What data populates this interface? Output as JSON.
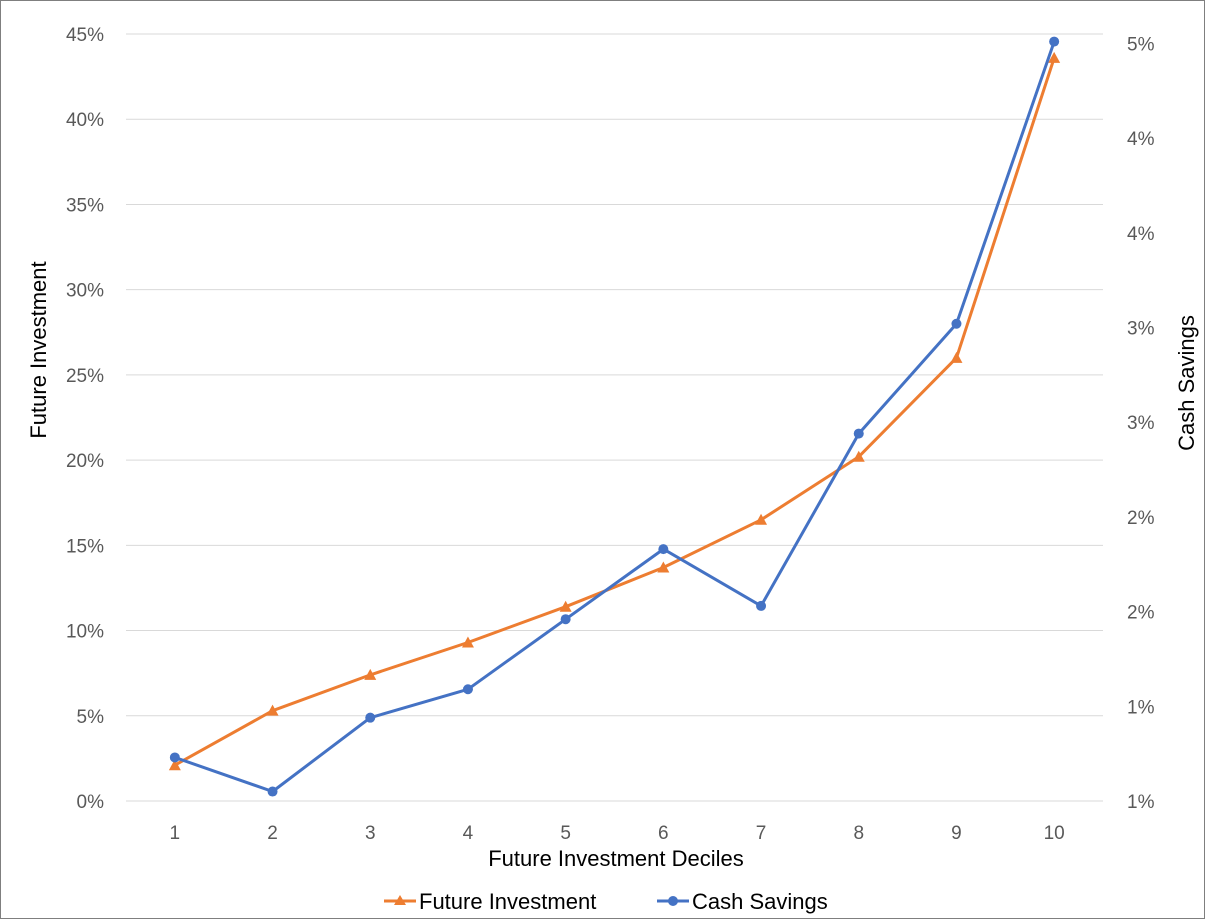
{
  "chart_data": {
    "type": "line",
    "title": "",
    "xlabel": "Future Investment Deciles",
    "ylabel": "Future Investment",
    "y2label": "Cash Savings",
    "categories": [
      "1",
      "2",
      "3",
      "4",
      "5",
      "6",
      "7",
      "8",
      "9",
      "10"
    ],
    "ylim": [
      0,
      0.45
    ],
    "yticks": [
      0,
      0.05,
      0.1,
      0.15,
      0.2,
      0.25,
      0.3,
      0.35,
      0.4,
      0.45
    ],
    "ytick_labels": [
      "0%",
      "5%",
      "10%",
      "15%",
      "20%",
      "25%",
      "30%",
      "35%",
      "40%",
      "45%"
    ],
    "y2lim": [
      0.005,
      0.0455
    ],
    "y2ticks": [
      0.005,
      0.01,
      0.015,
      0.02,
      0.025,
      0.03,
      0.035,
      0.04,
      0.045
    ],
    "y2tick_labels": [
      "1%",
      "1%",
      "2%",
      "2%",
      "3%",
      "3%",
      "4%",
      "4%",
      "5%"
    ],
    "grid": true,
    "legend_position": "bottom",
    "series": [
      {
        "name": "Future Investment",
        "axis": "left",
        "color": "#ED7D31",
        "marker": "triangle",
        "values": [
          0.021,
          0.053,
          0.074,
          0.093,
          0.114,
          0.137,
          0.165,
          0.202,
          0.26,
          0.436
        ]
      },
      {
        "name": "Cash Savings",
        "axis": "right",
        "color": "#4472C4",
        "marker": "circle",
        "values": [
          0.0073,
          0.0055,
          0.0094,
          0.0109,
          0.0146,
          0.0183,
          0.0153,
          0.0244,
          0.0302,
          0.0451
        ]
      }
    ]
  }
}
